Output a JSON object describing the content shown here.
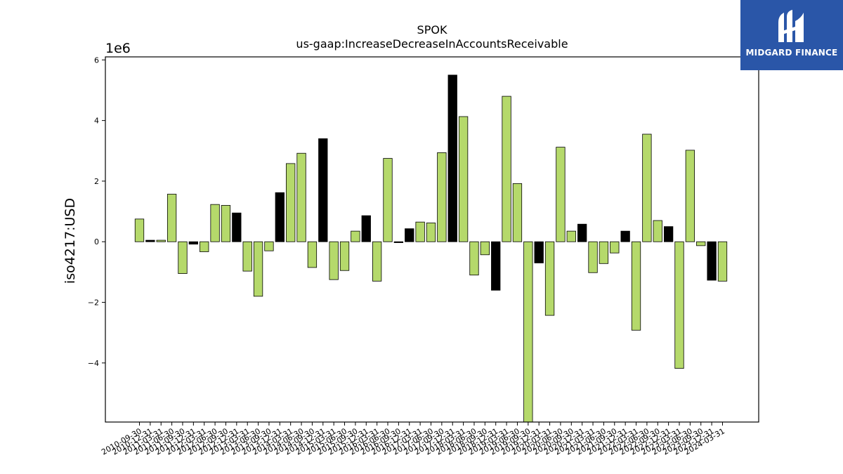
{
  "chart_data": {
    "type": "bar",
    "title": "SPOK",
    "subtitle": "us-gaap:IncreaseDecreaseInAccountsReceivable",
    "xlabel": "",
    "ylabel": "iso4217:USD",
    "scale_label": "1e6",
    "ylim": [
      -5.95,
      6.1
    ],
    "yticks": [
      -4,
      -2,
      0,
      2,
      4,
      6
    ],
    "ytick_labels": [
      "−4",
      "−2",
      "0",
      "2",
      "4",
      "6"
    ],
    "grid": false,
    "colors": {
      "green": "#b5d96b",
      "black": "#000000",
      "edge": "#000000"
    },
    "x": [
      "2010-09-30",
      "2010-12-31",
      "2011-03-31",
      "2011-06-30",
      "2011-09-30",
      "2011-12-31",
      "2012-03-31",
      "2012-06-30",
      "2012-09-30",
      "2012-12-31",
      "2013-03-31",
      "2013-06-30",
      "2013-09-30",
      "2013-12-31",
      "2014-03-31",
      "2014-06-30",
      "2014-09-30",
      "2014-12-31",
      "2015-03-31",
      "2015-06-30",
      "2015-09-30",
      "2015-12-31",
      "2016-03-31",
      "2016-06-30",
      "2016-09-30",
      "2016-12-31",
      "2017-03-31",
      "2017-06-30",
      "2017-09-30",
      "2017-12-31",
      "2018-03-31",
      "2018-06-30",
      "2018-09-30",
      "2018-12-31",
      "2019-03-31",
      "2019-06-30",
      "2019-09-30",
      "2019-12-31",
      "2020-03-31",
      "2020-06-30",
      "2020-09-30",
      "2020-12-31",
      "2021-03-31",
      "2021-06-30",
      "2021-09-30",
      "2021-12-31",
      "2022-03-31",
      "2022-06-30",
      "2022-09-30",
      "2022-12-31",
      "2023-03-31",
      "2023-06-30",
      "2023-09-30",
      "2023-12-31",
      "2024-03-31"
    ],
    "values": [
      0.75,
      0.05,
      0.05,
      1.57,
      -1.05,
      -0.08,
      -0.33,
      1.23,
      1.2,
      0.95,
      -0.97,
      -1.8,
      -0.3,
      1.62,
      2.58,
      2.92,
      -0.85,
      3.4,
      -1.25,
      -0.95,
      0.35,
      0.86,
      -1.3,
      2.75,
      -0.03,
      0.43,
      0.65,
      0.62,
      2.94,
      5.5,
      4.13,
      -1.1,
      -0.43,
      -1.6,
      4.8,
      1.92,
      -6.0,
      -0.7,
      -2.43,
      3.12,
      0.35,
      0.58,
      -1.02,
      -0.72,
      -0.37,
      0.35,
      -2.92,
      3.55,
      0.7,
      0.5,
      -4.18,
      3.02,
      -0.13,
      -1.27,
      -1.3
    ],
    "bar_colors": [
      "green",
      "black",
      "green",
      "green",
      "green",
      "black",
      "green",
      "green",
      "green",
      "black",
      "green",
      "green",
      "green",
      "black",
      "green",
      "green",
      "green",
      "black",
      "green",
      "green",
      "green",
      "black",
      "green",
      "green",
      "black",
      "black",
      "green",
      "green",
      "green",
      "black",
      "green",
      "green",
      "green",
      "black",
      "green",
      "green",
      "green",
      "black",
      "green",
      "green",
      "green",
      "black",
      "green",
      "green",
      "green",
      "black",
      "green",
      "green",
      "green",
      "black",
      "green",
      "green",
      "green",
      "black",
      "green"
    ]
  },
  "logo": {
    "text": "MIDGARD FINANCE",
    "icon": "midgard-logo-icon"
  }
}
